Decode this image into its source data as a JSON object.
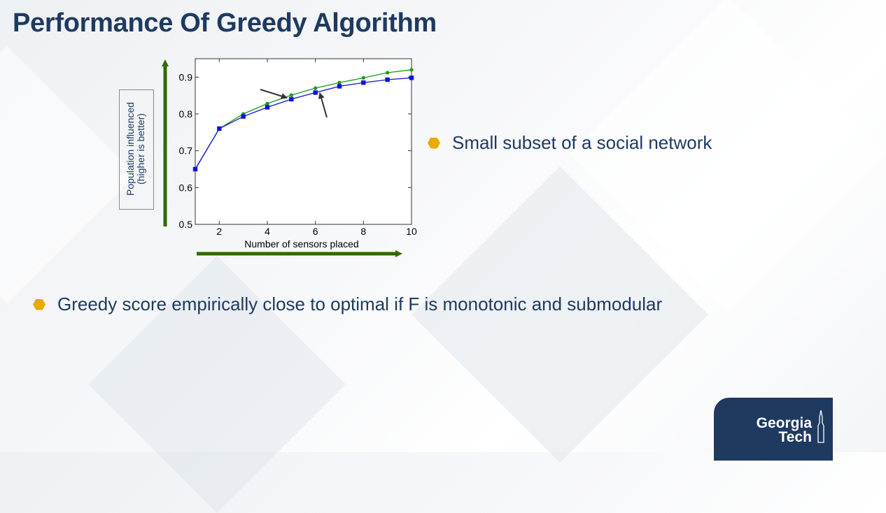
{
  "slide": {
    "title": "Performance Of Greedy Algorithm",
    "bullets": [
      "Small subset of  a social network",
      "Greedy score empirically close to optimal if F is monotonic and submodular"
    ],
    "logo": {
      "line1": "Georgia",
      "line2": "Tech"
    }
  },
  "chart_data": {
    "type": "line",
    "xlabel": "Number of sensors placed",
    "ylabel_lines": [
      "Population influenced",
      "(higher is better)"
    ],
    "xlim": [
      1,
      10
    ],
    "ylim": [
      0.5,
      0.95
    ],
    "xticks": [
      2,
      4,
      6,
      8,
      10
    ],
    "yticks": [
      0.5,
      0.6,
      0.7,
      0.8,
      0.9
    ],
    "ytick_labels": [
      "0.5",
      "0.6",
      "0.7",
      "0.8",
      "0.9"
    ],
    "x": [
      1,
      2,
      3,
      4,
      5,
      6,
      7,
      8,
      9,
      10
    ],
    "series": [
      {
        "color": "#1a9a1a",
        "marker": "circle",
        "values": [
          0.65,
          0.76,
          0.8,
          0.828,
          0.851,
          0.87,
          0.885,
          0.898,
          0.912,
          0.92
        ]
      },
      {
        "color": "#1010e0",
        "marker": "square",
        "values": [
          0.65,
          0.76,
          0.793,
          0.818,
          0.84,
          0.858,
          0.875,
          0.885,
          0.893,
          0.898
        ]
      }
    ],
    "colors": {
      "axis_arrow": "#2f6a00",
      "title": "#1f3a60",
      "bullet": "#eaaa00"
    }
  }
}
